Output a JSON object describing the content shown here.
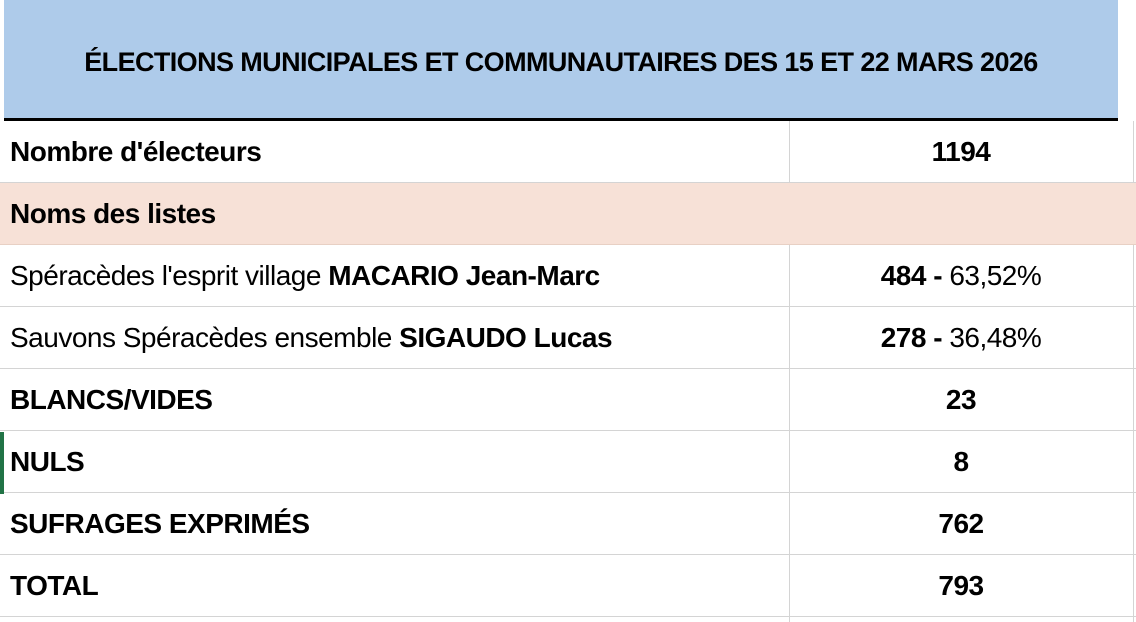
{
  "title": "ÉLECTIONS MUNICIPALES ET COMMUNAUTAIRES DES 15 ET 22 MARS 2026",
  "voters": {
    "label": "Nombre d'électeurs",
    "value": "1194"
  },
  "lists_header": "Noms des listes",
  "lists": [
    {
      "list_name": "Spéracèdes l'esprit village ",
      "candidate": "MACARIO Jean-Marc",
      "votes": "484",
      "separator": " - ",
      "percent": "63,52%"
    },
    {
      "list_name": "Sauvons Spéracèdes ensemble ",
      "candidate": "SIGAUDO Lucas",
      "votes": "278",
      "separator": " - ",
      "percent": "36,48%"
    }
  ],
  "blank": {
    "label": "BLANCS/VIDES",
    "value": "23"
  },
  "null_votes": {
    "label": "NULS",
    "value": "8"
  },
  "expressed": {
    "label": "SUFRAGES EXPRIMÉS",
    "value": "762"
  },
  "total": {
    "label": "TOTAL",
    "value": "793"
  },
  "colors": {
    "title_background": "#aecbea",
    "lists_header_background": "#f7e1d7",
    "gridline": "#d4d4d4",
    "selection_marker": "#217346"
  }
}
